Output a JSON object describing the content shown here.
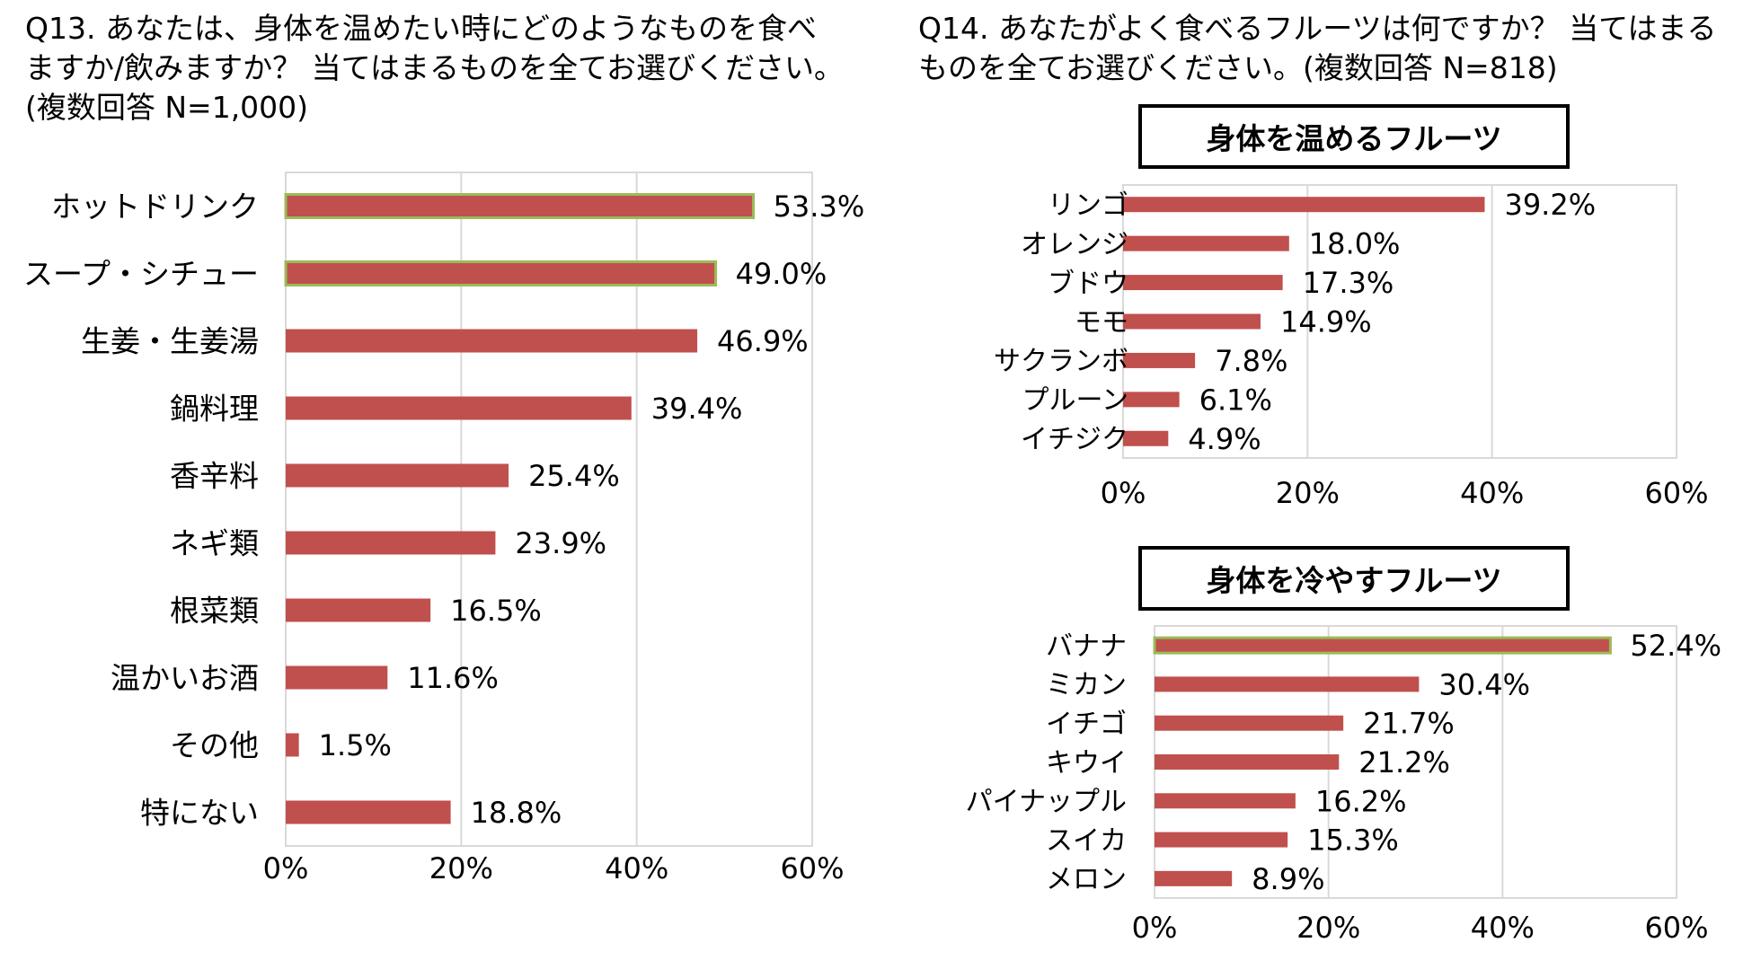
{
  "q13": {
    "title": "Q13. あなたは、身体を温めたい時にどのようなものを食べ\nますか/飲みますか？ 当てはまるものを全てお選びください。\n(複数回答 N=1,000)"
  },
  "q14": {
    "title": "Q14. あなたがよく食べるフルーツは何ですか？ 当てはまる\nものを全てお選びください。(複数回答 N=818)",
    "warm_box_title": "身体を温めるフルーツ",
    "cool_box_title": "身体を冷やすフルーツ"
  },
  "colors": {
    "bar": "#c0504d",
    "highlight_border": "#9bbb59",
    "grid": "#d9d9d9",
    "frame": "#d9d9d9"
  },
  "chart_data": [
    {
      "id": "q13-chart",
      "type": "bar",
      "orientation": "horizontal",
      "title": "Q13. あなたは、身体を温めたい時にどのようなものを食べますか/飲みますか？ 当てはまるものを全てお選びください。(複数回答 N=1,000)",
      "categories": [
        "ホットドリンク",
        "スープ・シチュー",
        "生姜・生姜湯",
        "鍋料理",
        "香辛料",
        "ネギ類",
        "根菜類",
        "温かいお酒",
        "その他",
        "特にない"
      ],
      "values": [
        53.3,
        49.0,
        46.9,
        39.4,
        25.4,
        23.9,
        16.5,
        11.6,
        1.5,
        18.8
      ],
      "labels": [
        "53.3%",
        "49.0%",
        "46.9%",
        "39.4%",
        "25.4%",
        "23.9%",
        "16.5%",
        "11.6%",
        "1.5%",
        "18.8%"
      ],
      "highlighted": [
        "ホットドリンク",
        "スープ・シチュー"
      ],
      "xlim": [
        0,
        60
      ],
      "xticks": [
        0,
        20,
        40,
        60
      ],
      "xtick_labels": [
        "0%",
        "20%",
        "40%",
        "60%"
      ],
      "grid": true
    },
    {
      "id": "q14-warm-chart",
      "type": "bar",
      "orientation": "horizontal",
      "title": "身体を温めるフルーツ",
      "categories": [
        "リンゴ",
        "オレンジ",
        "ブドウ",
        "モモ",
        "サクランボ",
        "プルーン",
        "イチジク"
      ],
      "values": [
        39.2,
        18.0,
        17.3,
        14.9,
        7.8,
        6.1,
        4.9
      ],
      "labels": [
        "39.2%",
        "18.0%",
        "17.3%",
        "14.9%",
        "7.8%",
        "6.1%",
        "4.9%"
      ],
      "highlighted": [],
      "xlim": [
        0,
        60
      ],
      "xticks": [
        0,
        20,
        40,
        60
      ],
      "xtick_labels": [
        "0%",
        "20%",
        "40%",
        "60%"
      ],
      "grid": true
    },
    {
      "id": "q14-cool-chart",
      "type": "bar",
      "orientation": "horizontal",
      "title": "身体を冷やすフルーツ",
      "categories": [
        "バナナ",
        "ミカン",
        "イチゴ",
        "キウイ",
        "パイナップル",
        "スイカ",
        "メロン"
      ],
      "values": [
        52.4,
        30.4,
        21.7,
        21.2,
        16.2,
        15.3,
        8.9
      ],
      "labels": [
        "52.4%",
        "30.4%",
        "21.7%",
        "21.2%",
        "16.2%",
        "15.3%",
        "8.9%"
      ],
      "highlighted": [
        "バナナ"
      ],
      "xlim": [
        0,
        60
      ],
      "xticks": [
        0,
        20,
        40,
        60
      ],
      "xtick_labels": [
        "0%",
        "20%",
        "40%",
        "60%"
      ],
      "grid": true
    }
  ]
}
